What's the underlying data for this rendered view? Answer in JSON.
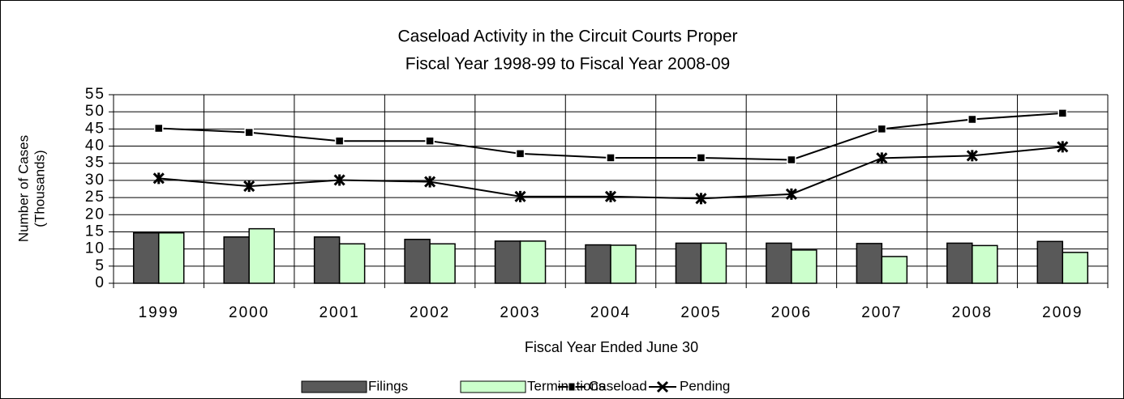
{
  "chart_data": {
    "type": "bar-line",
    "title": "Caseload Activity in the Circuit Courts Proper",
    "subtitle": "Fiscal Year 1998-99 to Fiscal Year 2008-09",
    "x_label": "Fiscal Year Ended June 30",
    "y_label": [
      "Number of Cases",
      "(Thousands)"
    ],
    "categories": [
      "1999",
      "2000",
      "2001",
      "2002",
      "2003",
      "2004",
      "2005",
      "2006",
      "2007",
      "2008",
      "2009"
    ],
    "ylim": [
      0,
      55
    ],
    "yticks": [
      0,
      5,
      10,
      15,
      20,
      25,
      30,
      35,
      40,
      45,
      50,
      55
    ],
    "grid": true,
    "series": [
      {
        "name": "Filings",
        "type": "bar",
        "color": "#595959",
        "values": [
          14.7,
          13.5,
          13.5,
          12.8,
          12.3,
          11.2,
          11.7,
          11.7,
          11.6,
          11.7,
          12.2
        ]
      },
      {
        "name": "Terminations",
        "type": "bar",
        "color": "#ccffcc",
        "values": [
          14.7,
          15.9,
          11.5,
          11.5,
          12.3,
          11.1,
          11.7,
          9.7,
          7.8,
          11.0,
          9.0
        ]
      },
      {
        "name": "Caseload",
        "type": "line",
        "marker": "square",
        "color": "#000000",
        "values": [
          45.2,
          44.0,
          41.5,
          41.5,
          37.8,
          36.6,
          36.6,
          36.0,
          45.0,
          47.8,
          49.6
        ]
      },
      {
        "name": "Pending",
        "type": "line",
        "marker": "x",
        "color": "#000000",
        "values": [
          30.6,
          28.3,
          30.1,
          29.6,
          25.3,
          25.3,
          24.7,
          26.0,
          36.5,
          37.2,
          39.8
        ]
      }
    ]
  }
}
